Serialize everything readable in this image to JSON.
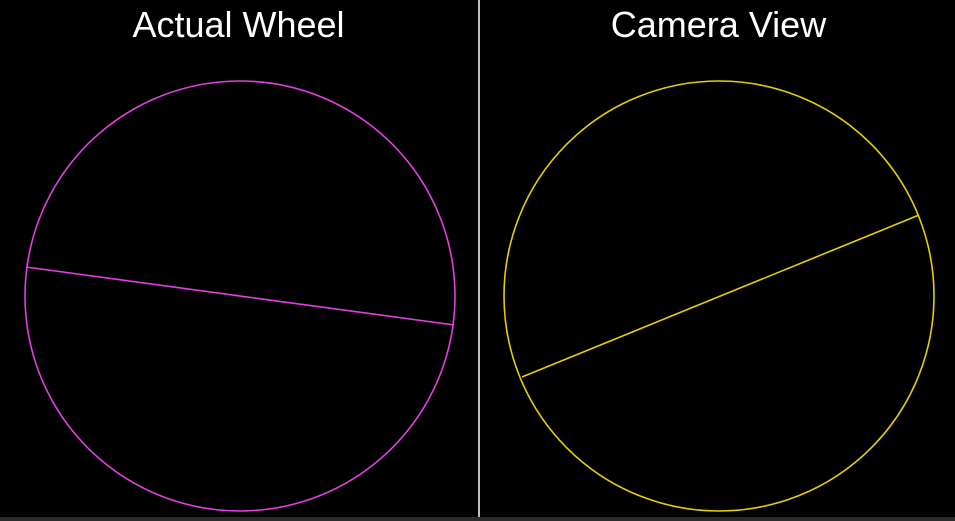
{
  "panels": [
    {
      "title": "Actual Wheel",
      "color": "#e040e0"
    },
    {
      "title": "Camera View",
      "color": "#e6cf00"
    }
  ],
  "colors": {
    "background": "#000000",
    "divider": "#bfbfbf",
    "title_text": "#ffffff"
  }
}
